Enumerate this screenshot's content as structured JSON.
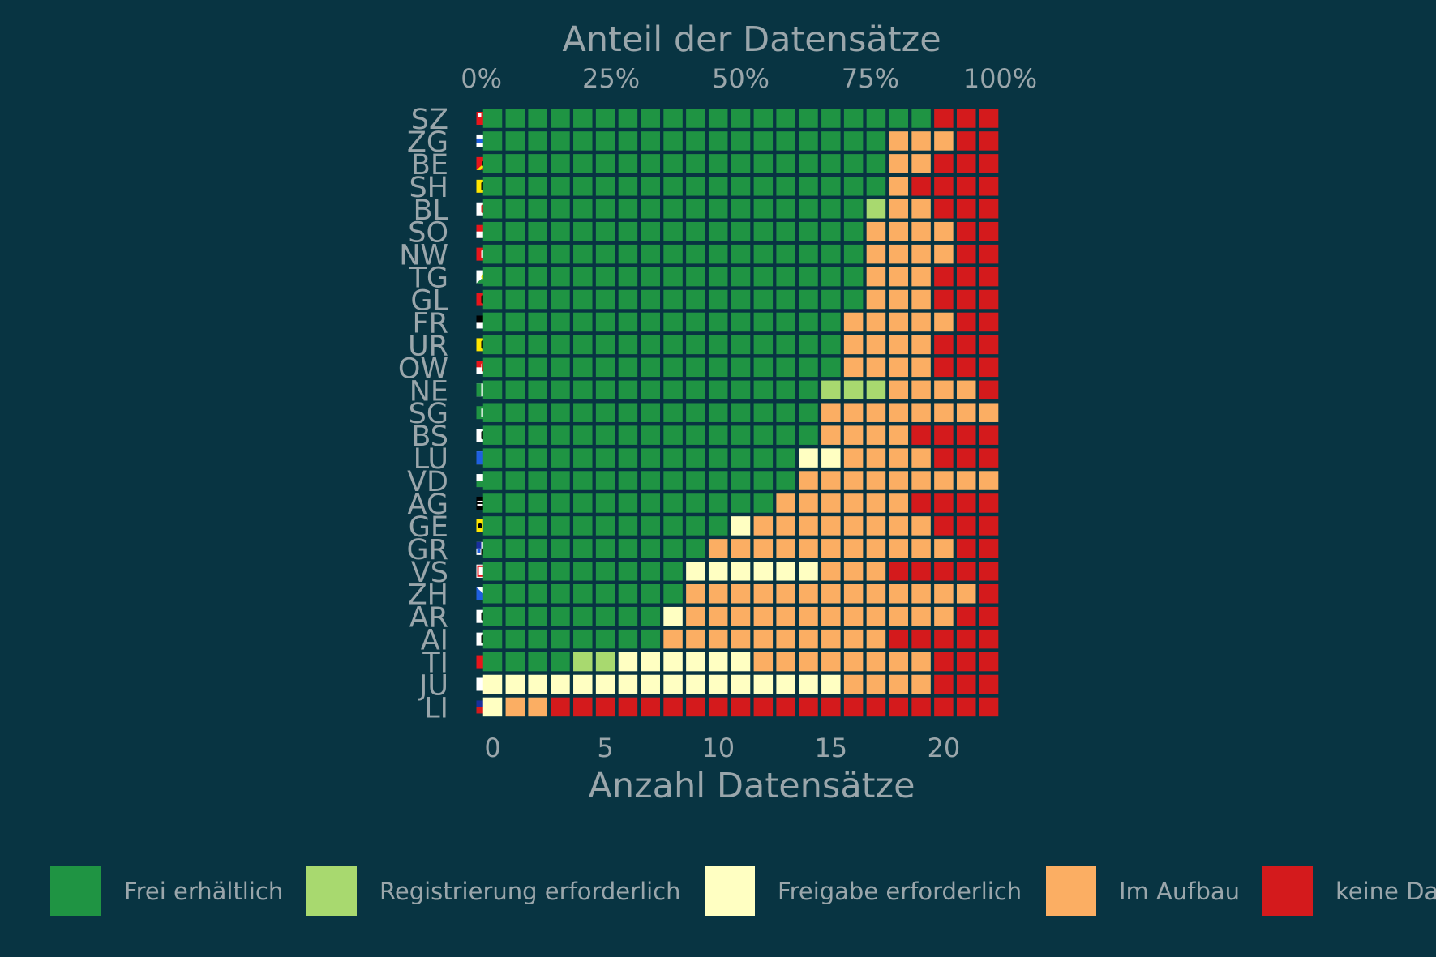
{
  "chart_data": {
    "type": "heatmap",
    "subtype": "waffle",
    "top_axis_title": "Anteil der Datensätze",
    "top_tick_labels": [
      "0%",
      "25%",
      "50%",
      "75%",
      "100%"
    ],
    "top_tick_values": [
      0,
      0.25,
      0.5,
      0.75,
      1.0
    ],
    "xlabel": "Anzahl Datensätze",
    "x_tick_labels": [
      "0",
      "5",
      "10",
      "15",
      "20"
    ],
    "x_tick_values": [
      0,
      5,
      10,
      15,
      20
    ],
    "total_per_row": 23,
    "grid": false,
    "legend_position": "bottom",
    "colors": {
      "background": "#083442",
      "text": "#9aa6ab",
      "Frei erhältlich": "#1f9443",
      "Registrierung erforderlich": "#a8d96f",
      "Freigabe erforderlich": "#ffffc2",
      "Im Aufbau": "#fbae63",
      "keine Daten": "#d41a1c"
    },
    "legend": [
      "Frei erhältlich",
      "Registrierung erforderlich",
      "Freigabe erforderlich",
      "Im Aufbau",
      "keine Da"
    ],
    "categories_order": [
      "Frei erhältlich",
      "Registrierung erforderlich",
      "Freigabe erforderlich",
      "Im Aufbau",
      "keine Daten"
    ],
    "rows": [
      {
        "canton": "SZ",
        "flag_icon": "flag-sz-icon",
        "counts": [
          20,
          0,
          0,
          0,
          3
        ]
      },
      {
        "canton": "ZG",
        "flag_icon": "flag-zg-icon",
        "counts": [
          18,
          0,
          0,
          3,
          2
        ]
      },
      {
        "canton": "BE",
        "flag_icon": "flag-be-icon",
        "counts": [
          18,
          0,
          0,
          2,
          3
        ]
      },
      {
        "canton": "SH",
        "flag_icon": "flag-sh-icon",
        "counts": [
          18,
          0,
          0,
          1,
          4
        ]
      },
      {
        "canton": "BL",
        "flag_icon": "flag-bl-icon",
        "counts": [
          17,
          1,
          0,
          2,
          3
        ]
      },
      {
        "canton": "SO",
        "flag_icon": "flag-so-icon",
        "counts": [
          17,
          0,
          0,
          4,
          2
        ]
      },
      {
        "canton": "NW",
        "flag_icon": "flag-nw-icon",
        "counts": [
          17,
          0,
          0,
          4,
          2
        ]
      },
      {
        "canton": "TG",
        "flag_icon": "flag-tg-icon",
        "counts": [
          17,
          0,
          0,
          3,
          3
        ]
      },
      {
        "canton": "GL",
        "flag_icon": "flag-gl-icon",
        "counts": [
          17,
          0,
          0,
          3,
          3
        ]
      },
      {
        "canton": "FR",
        "flag_icon": "flag-fr-icon",
        "counts": [
          16,
          0,
          0,
          5,
          2
        ]
      },
      {
        "canton": "UR",
        "flag_icon": "flag-ur-icon",
        "counts": [
          16,
          0,
          0,
          4,
          3
        ]
      },
      {
        "canton": "OW",
        "flag_icon": "flag-ow-icon",
        "counts": [
          16,
          0,
          0,
          4,
          3
        ]
      },
      {
        "canton": "NE",
        "flag_icon": "flag-ne-icon",
        "counts": [
          15,
          3,
          0,
          4,
          1
        ]
      },
      {
        "canton": "SG",
        "flag_icon": "flag-sg-icon",
        "counts": [
          15,
          0,
          0,
          8,
          0
        ]
      },
      {
        "canton": "BS",
        "flag_icon": "flag-bs-icon",
        "counts": [
          15,
          0,
          0,
          4,
          4
        ]
      },
      {
        "canton": "LU",
        "flag_icon": "flag-lu-icon",
        "counts": [
          14,
          0,
          2,
          4,
          3
        ]
      },
      {
        "canton": "VD",
        "flag_icon": "flag-vd-icon",
        "counts": [
          14,
          0,
          0,
          9,
          0
        ]
      },
      {
        "canton": "AG",
        "flag_icon": "flag-ag-icon",
        "counts": [
          13,
          0,
          0,
          6,
          4
        ]
      },
      {
        "canton": "GE",
        "flag_icon": "flag-ge-icon",
        "counts": [
          11,
          0,
          1,
          8,
          3
        ]
      },
      {
        "canton": "GR",
        "flag_icon": "flag-gr-icon",
        "counts": [
          10,
          0,
          0,
          11,
          2
        ]
      },
      {
        "canton": "VS",
        "flag_icon": "flag-vs-icon",
        "counts": [
          9,
          0,
          6,
          3,
          5
        ]
      },
      {
        "canton": "ZH",
        "flag_icon": "flag-zh-icon",
        "counts": [
          9,
          0,
          0,
          13,
          1
        ]
      },
      {
        "canton": "AR",
        "flag_icon": "flag-ar-icon",
        "counts": [
          8,
          0,
          1,
          12,
          2
        ]
      },
      {
        "canton": "AI",
        "flag_icon": "flag-ai-icon",
        "counts": [
          8,
          0,
          0,
          10,
          5
        ]
      },
      {
        "canton": "TI",
        "flag_icon": "flag-ti-icon",
        "counts": [
          4,
          2,
          6,
          8,
          3
        ]
      },
      {
        "canton": "JU",
        "flag_icon": "flag-ju-icon",
        "counts": [
          0,
          0,
          16,
          4,
          3
        ]
      },
      {
        "canton": "LI",
        "flag_icon": "flag-li-icon",
        "counts": [
          0,
          0,
          1,
          2,
          20
        ]
      }
    ]
  }
}
